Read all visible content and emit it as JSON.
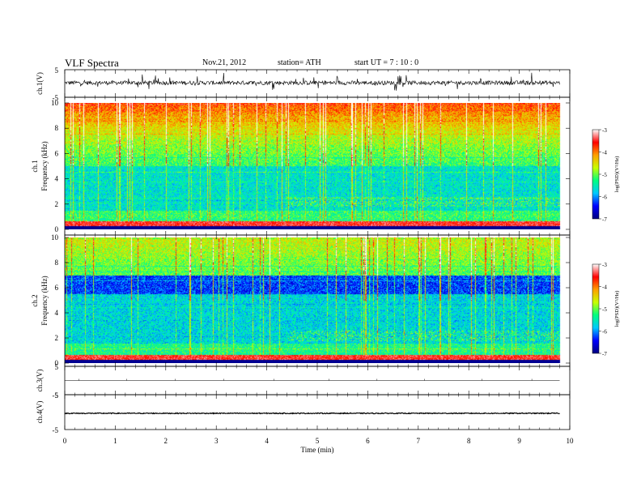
{
  "header": {
    "title": "VLF  Spectra",
    "date": "Nov.21, 2012",
    "station": "station= ATH",
    "start": "start  UT  =   7  : 10 : 0"
  },
  "chart_data": {
    "type": "heatmap",
    "title": "VLF  Spectra",
    "x": {
      "label": "Time  (min)",
      "range": [
        0,
        10
      ],
      "ticks": [
        "0",
        "1",
        "2",
        "3",
        "4",
        "5",
        "6",
        "7",
        "8",
        "9",
        "10"
      ],
      "data_end": 9.8
    },
    "panels": [
      {
        "id": "ch1-wave",
        "kind": "waveform",
        "ylabel": "ch.1(V)",
        "ylim": [
          -5,
          5
        ],
        "yticks": [
          "5",
          "-5"
        ],
        "baseline": 0.3,
        "noise_amplitude": 0.9,
        "spike_amplitude": 3.5
      },
      {
        "id": "ch1-spec",
        "kind": "spectrogram",
        "channel_label": "ch.1",
        "ylabel": "Frequency  (kHz)",
        "ylim": [
          0,
          10
        ],
        "yticks": [
          "0",
          "2",
          "4",
          "6",
          "8",
          "10"
        ],
        "band_change_min": 4.4
      },
      {
        "id": "ch2-spec",
        "kind": "spectrogram",
        "channel_label": "ch.2",
        "ylabel": "Frequency  (kHz)",
        "ylim": [
          0,
          10
        ],
        "yticks": [
          "0",
          "2",
          "4",
          "6",
          "8",
          "10"
        ],
        "band_change_min": 4.4
      },
      {
        "id": "ch3-wave",
        "kind": "waveform",
        "ylabel": "ch.3(V)",
        "ylim": [
          -5,
          5
        ],
        "yticks": [
          "5",
          "-5"
        ],
        "baseline": 0,
        "noise_amplitude": 0,
        "spike_amplitude": 0
      },
      {
        "id": "ch4-wave",
        "kind": "waveform",
        "ylabel": "ch.4(V)",
        "ylim": [
          -5,
          5
        ],
        "yticks": [
          "5",
          "-5"
        ],
        "baseline": -0.4,
        "noise_amplitude": 0.15,
        "spike_amplitude": 0
      }
    ],
    "colorbar": {
      "label": "log(PSD)(V²/Hz)",
      "range": [
        -7,
        -3
      ],
      "ticks": [
        "-3",
        "-4",
        "-5",
        "-6",
        "-7"
      ],
      "colors": [
        "#000080",
        "#0000ff",
        "#00c8ff",
        "#00ff80",
        "#c8ff00",
        "#ffa000",
        "#ff0000",
        "#ffffff"
      ]
    }
  }
}
